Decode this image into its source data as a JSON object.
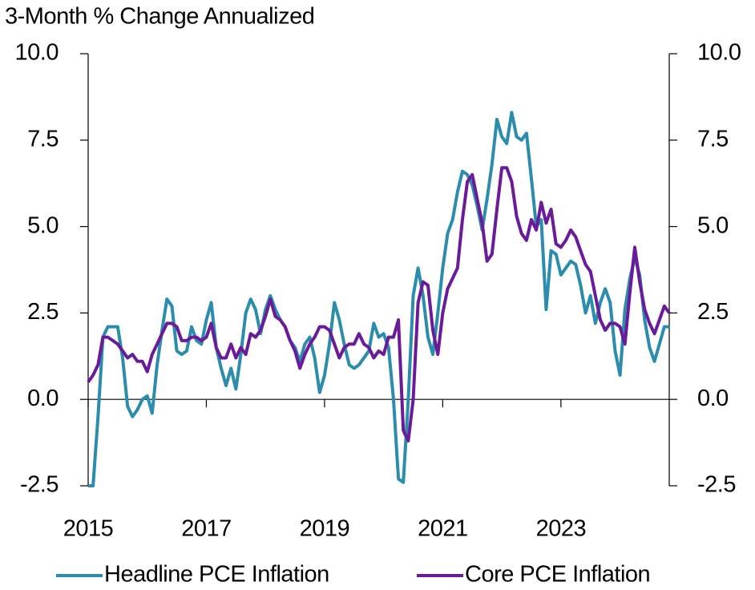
{
  "chart_data": {
    "type": "line",
    "title": "3-Month % Change Annualized",
    "x": [
      2015.0,
      2015.083,
      2015.167,
      2015.25,
      2015.333,
      2015.417,
      2015.5,
      2015.583,
      2015.667,
      2015.75,
      2015.833,
      2015.917,
      2016.0,
      2016.083,
      2016.167,
      2016.25,
      2016.333,
      2016.417,
      2016.5,
      2016.583,
      2016.667,
      2016.75,
      2016.833,
      2016.917,
      2017.0,
      2017.083,
      2017.167,
      2017.25,
      2017.333,
      2017.417,
      2017.5,
      2017.583,
      2017.667,
      2017.75,
      2017.833,
      2017.917,
      2018.0,
      2018.083,
      2018.167,
      2018.25,
      2018.333,
      2018.417,
      2018.5,
      2018.583,
      2018.667,
      2018.75,
      2018.833,
      2018.917,
      2019.0,
      2019.083,
      2019.167,
      2019.25,
      2019.333,
      2019.417,
      2019.5,
      2019.583,
      2019.667,
      2019.75,
      2019.833,
      2019.917,
      2020.0,
      2020.083,
      2020.167,
      2020.25,
      2020.333,
      2020.417,
      2020.5,
      2020.583,
      2020.667,
      2020.75,
      2020.833,
      2020.917,
      2021.0,
      2021.083,
      2021.167,
      2021.25,
      2021.333,
      2021.417,
      2021.5,
      2021.583,
      2021.667,
      2021.75,
      2021.833,
      2021.917,
      2022.0,
      2022.083,
      2022.167,
      2022.25,
      2022.333,
      2022.417,
      2022.5,
      2022.583,
      2022.667,
      2022.75,
      2022.833,
      2022.917,
      2023.0,
      2023.083,
      2023.167,
      2023.25,
      2023.333,
      2023.417,
      2023.5,
      2023.583,
      2023.667,
      2023.75,
      2023.833,
      2023.917,
      2024.0,
      2024.083,
      2024.167,
      2024.25,
      2024.333,
      2024.417,
      2024.5,
      2024.583,
      2024.667,
      2024.75,
      2024.833
    ],
    "series": [
      {
        "name": "Headline PCE Inflation",
        "color": "#2b8cae",
        "values": [
          -2.5,
          -2.5,
          -0.5,
          1.8,
          2.1,
          2.1,
          2.1,
          1.2,
          -0.2,
          -0.5,
          -0.3,
          0.0,
          0.1,
          -0.4,
          1.0,
          2.0,
          2.9,
          2.7,
          1.4,
          1.3,
          1.4,
          2.1,
          1.7,
          1.6,
          2.3,
          2.8,
          1.5,
          0.9,
          0.4,
          0.9,
          0.3,
          1.3,
          2.5,
          2.9,
          2.6,
          1.9,
          2.6,
          3.0,
          2.6,
          2.3,
          2.1,
          1.7,
          1.5,
          1.1,
          1.6,
          1.8,
          1.2,
          0.2,
          0.7,
          1.6,
          2.8,
          2.3,
          1.6,
          1.0,
          0.9,
          1.0,
          1.2,
          1.4,
          2.2,
          1.8,
          1.9,
          1.5,
          0.0,
          -2.3,
          -2.4,
          0.0,
          3.0,
          3.8,
          3.0,
          1.8,
          1.3,
          2.5,
          3.8,
          4.8,
          5.2,
          6.0,
          6.6,
          6.5,
          6.2,
          5.6,
          4.9,
          5.8,
          6.8,
          8.1,
          7.6,
          7.4,
          8.3,
          7.6,
          7.5,
          7.7,
          6.4,
          5.0,
          5.2,
          2.6,
          4.3,
          4.2,
          3.6,
          3.8,
          4.0,
          3.9,
          3.3,
          2.5,
          3.0,
          2.2,
          2.8,
          3.2,
          2.8,
          1.4,
          0.7,
          2.6,
          3.5,
          4.1,
          3.6,
          2.3,
          1.5,
          1.1,
          1.6,
          2.1,
          2.1
        ]
      },
      {
        "name": "Core PCE Inflation",
        "color": "#6a1b9a",
        "values": [
          0.5,
          0.7,
          1.0,
          1.8,
          1.8,
          1.7,
          1.6,
          1.4,
          1.2,
          1.3,
          1.1,
          1.1,
          0.8,
          1.3,
          1.6,
          1.9,
          2.2,
          2.2,
          2.1,
          1.7,
          1.7,
          1.8,
          1.8,
          1.7,
          1.8,
          2.2,
          1.5,
          1.2,
          1.2,
          1.6,
          1.2,
          1.5,
          1.3,
          1.9,
          1.8,
          2.0,
          2.4,
          2.9,
          2.4,
          2.3,
          2.1,
          1.7,
          1.4,
          0.9,
          1.3,
          1.6,
          1.8,
          2.1,
          2.1,
          2.0,
          1.6,
          1.2,
          1.5,
          1.6,
          1.6,
          1.9,
          1.6,
          1.5,
          1.2,
          1.4,
          1.3,
          1.8,
          1.8,
          2.3,
          -0.9,
          -1.2,
          0.0,
          2.8,
          3.4,
          3.3,
          2.0,
          1.3,
          2.5,
          3.2,
          3.5,
          3.8,
          5.2,
          6.3,
          6.5,
          5.8,
          5.1,
          4.0,
          4.2,
          5.5,
          6.7,
          6.7,
          6.3,
          5.3,
          4.8,
          4.6,
          5.2,
          4.9,
          5.7,
          5.1,
          5.5,
          4.5,
          4.4,
          4.6,
          4.9,
          4.7,
          4.3,
          3.9,
          3.7,
          3.0,
          2.3,
          2.0,
          2.2,
          2.2,
          2.1,
          1.6,
          3.1,
          4.4,
          3.4,
          2.6,
          2.2,
          1.9,
          2.3,
          2.7,
          2.5
        ]
      }
    ],
    "xlim": [
      2015,
      2024.833
    ],
    "xticks": [
      2015,
      2017,
      2019,
      2021,
      2023
    ],
    "ylim": [
      -2.5,
      10
    ],
    "yticks": [
      {
        "value": -2.5,
        "label": "-2.5"
      },
      {
        "value": 0,
        "label": "0.0"
      },
      {
        "value": 2.5,
        "label": "2.5"
      },
      {
        "value": 5,
        "label": "5.0"
      },
      {
        "value": 7.5,
        "label": "7.5"
      },
      {
        "value": 10,
        "label": "10.0"
      }
    ],
    "y2lim": [
      -2.5,
      10
    ],
    "y2ticks": [
      {
        "value": -2.5,
        "label": "-2.5"
      },
      {
        "value": 0,
        "label": "0.0"
      },
      {
        "value": 2.5,
        "label": "2.5"
      },
      {
        "value": 5,
        "label": "5.0"
      },
      {
        "value": 7.5,
        "label": "7.5"
      },
      {
        "value": 10,
        "label": "10.0"
      }
    ],
    "legend": "bottom"
  }
}
